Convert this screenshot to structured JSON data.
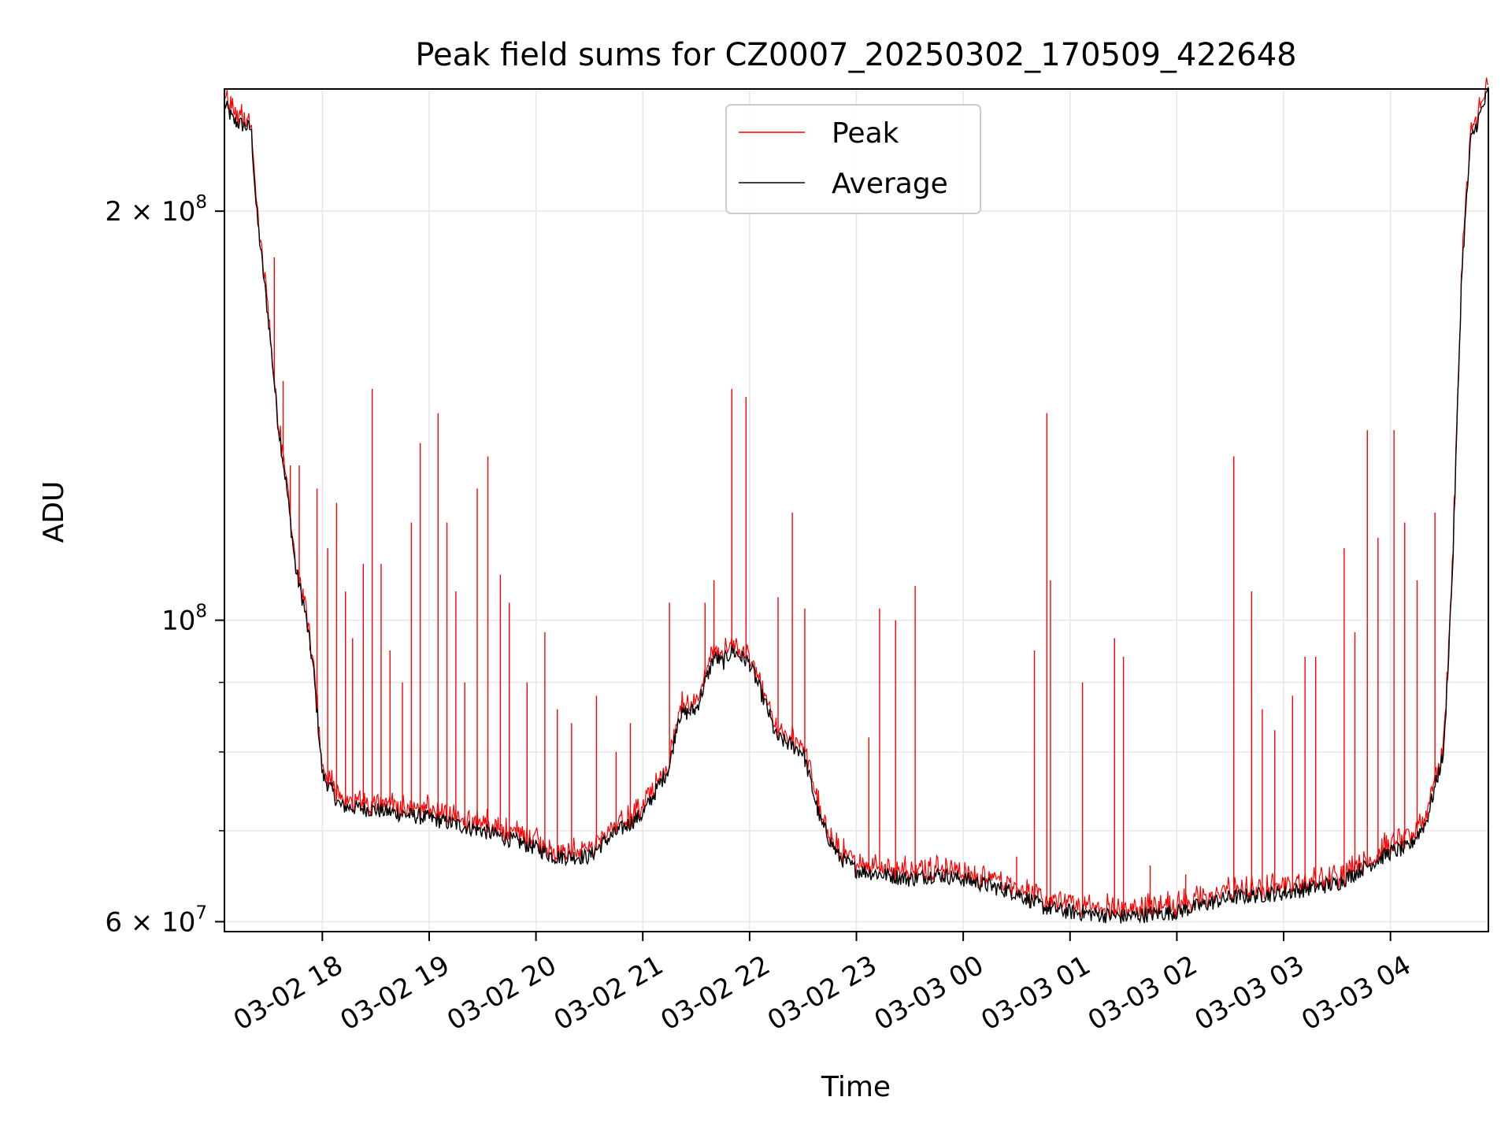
{
  "chart_data": {
    "type": "line",
    "title": "Peak field sums for CZ0007_20250302_170509_422648",
    "xlabel": "Time",
    "ylabel": "ADU",
    "y_scale": "log",
    "ylim": [
      59000000,
      246000000
    ],
    "xlim": [
      "2025-03-02 17:05",
      "2025-03-03 04:55"
    ],
    "grid": true,
    "legend": {
      "position": "top-center",
      "entries": [
        "Peak",
        "Average"
      ]
    },
    "x_ticks": [
      {
        "value": "2025-03-02 18:00",
        "label": "03-02 18"
      },
      {
        "value": "2025-03-02 19:00",
        "label": "03-02 19"
      },
      {
        "value": "2025-03-02 20:00",
        "label": "03-02 20"
      },
      {
        "value": "2025-03-02 21:00",
        "label": "03-02 21"
      },
      {
        "value": "2025-03-02 22:00",
        "label": "03-02 22"
      },
      {
        "value": "2025-03-02 23:00",
        "label": "03-02 23"
      },
      {
        "value": "2025-03-03 00:00",
        "label": "03-03 00"
      },
      {
        "value": "2025-03-03 01:00",
        "label": "03-03 01"
      },
      {
        "value": "2025-03-03 02:00",
        "label": "03-03 02"
      },
      {
        "value": "2025-03-03 03:00",
        "label": "03-03 03"
      },
      {
        "value": "2025-03-03 04:00",
        "label": "03-03 04"
      }
    ],
    "y_ticks": [
      {
        "value": 60000000,
        "base": "6 × 10",
        "exp": "7"
      },
      {
        "value": 100000000,
        "base": "10",
        "exp": "8"
      },
      {
        "value": 200000000,
        "base": "2 × 10",
        "exp": "8"
      }
    ],
    "y_minor_ticks": [
      70000000,
      80000000,
      90000000
    ],
    "series": [
      {
        "name": "Average",
        "color": "#000000",
        "x": [
          "2025-03-02 17:05",
          "2025-03-02 17:10",
          "2025-03-02 17:20",
          "2025-03-02 17:23",
          "2025-03-02 17:30",
          "2025-03-02 17:35",
          "2025-03-02 17:40",
          "2025-03-02 17:45",
          "2025-03-02 17:50",
          "2025-03-02 17:55",
          "2025-03-02 18:00",
          "2025-03-02 18:10",
          "2025-03-02 18:30",
          "2025-03-02 19:00",
          "2025-03-02 19:30",
          "2025-03-02 20:00",
          "2025-03-02 20:10",
          "2025-03-02 20:30",
          "2025-03-02 20:40",
          "2025-03-02 21:00",
          "2025-03-02 21:15",
          "2025-03-02 21:20",
          "2025-03-02 21:30",
          "2025-03-02 21:40",
          "2025-03-02 21:45",
          "2025-03-02 21:50",
          "2025-03-02 21:55",
          "2025-03-02 22:00",
          "2025-03-02 22:10",
          "2025-03-02 22:15",
          "2025-03-02 22:30",
          "2025-03-02 22:40",
          "2025-03-02 22:50",
          "2025-03-02 23:00",
          "2025-03-02 23:30",
          "2025-03-02 23:45",
          "2025-03-03 00:00",
          "2025-03-03 00:30",
          "2025-03-03 00:45",
          "2025-03-03 01:00",
          "2025-03-03 01:30",
          "2025-03-03 02:00",
          "2025-03-03 02:30",
          "2025-03-03 03:00",
          "2025-03-03 03:30",
          "2025-03-03 04:00",
          "2025-03-03 04:10",
          "2025-03-03 04:20",
          "2025-03-03 04:30",
          "2025-03-03 04:35",
          "2025-03-03 04:40",
          "2025-03-03 04:45",
          "2025-03-03 04:55"
        ],
        "y": [
          240000000,
          233000000,
          230000000,
          200000000,
          165000000,
          140000000,
          125000000,
          109000000,
          102000000,
          92000000,
          77000000,
          73000000,
          72500000,
          71500000,
          70000000,
          68000000,
          67000000,
          67000000,
          69000000,
          72000000,
          78000000,
          85000000,
          86000000,
          94000000,
          93000000,
          95000000,
          94000000,
          93000000,
          86000000,
          82000000,
          80000000,
          71000000,
          67000000,
          65500000,
          64500000,
          65000000,
          64500000,
          63000000,
          61500000,
          61000000,
          60500000,
          61000000,
          62500000,
          63000000,
          64000000,
          67500000,
          68000000,
          71000000,
          80000000,
          110000000,
          180000000,
          225000000,
          245000000
        ]
      },
      {
        "name": "Peak",
        "color": "#ff0000",
        "spikes": [
          {
            "x": "2025-03-02 17:33",
            "y": 185000000
          },
          {
            "x": "2025-03-02 17:38",
            "y": 150000000
          },
          {
            "x": "2025-03-02 17:42",
            "y": 130000000
          },
          {
            "x": "2025-03-02 17:47",
            "y": 130000000
          },
          {
            "x": "2025-03-02 17:53",
            "y": 95000000
          },
          {
            "x": "2025-03-02 17:57",
            "y": 125000000
          },
          {
            "x": "2025-03-02 18:03",
            "y": 113000000
          },
          {
            "x": "2025-03-02 18:08",
            "y": 122000000
          },
          {
            "x": "2025-03-02 18:13",
            "y": 105000000
          },
          {
            "x": "2025-03-02 18:17",
            "y": 97000000
          },
          {
            "x": "2025-03-02 18:23",
            "y": 110000000
          },
          {
            "x": "2025-03-02 18:28",
            "y": 148000000
          },
          {
            "x": "2025-03-02 18:33",
            "y": 110000000
          },
          {
            "x": "2025-03-02 18:38",
            "y": 95000000
          },
          {
            "x": "2025-03-02 18:45",
            "y": 90000000
          },
          {
            "x": "2025-03-02 18:50",
            "y": 118000000
          },
          {
            "x": "2025-03-02 18:55",
            "y": 135000000
          },
          {
            "x": "2025-03-02 19:05",
            "y": 142000000
          },
          {
            "x": "2025-03-02 19:10",
            "y": 118000000
          },
          {
            "x": "2025-03-02 19:15",
            "y": 105000000
          },
          {
            "x": "2025-03-02 19:20",
            "y": 90000000
          },
          {
            "x": "2025-03-02 19:27",
            "y": 125000000
          },
          {
            "x": "2025-03-02 19:33",
            "y": 132000000
          },
          {
            "x": "2025-03-02 19:40",
            "y": 108000000
          },
          {
            "x": "2025-03-02 19:45",
            "y": 103000000
          },
          {
            "x": "2025-03-02 19:55",
            "y": 90000000
          },
          {
            "x": "2025-03-02 20:05",
            "y": 98000000
          },
          {
            "x": "2025-03-02 20:12",
            "y": 86000000
          },
          {
            "x": "2025-03-02 20:20",
            "y": 84000000
          },
          {
            "x": "2025-03-02 20:34",
            "y": 88000000
          },
          {
            "x": "2025-03-02 20:45",
            "y": 80000000
          },
          {
            "x": "2025-03-02 20:53",
            "y": 84000000
          },
          {
            "x": "2025-03-02 21:15",
            "y": 103000000
          },
          {
            "x": "2025-03-02 21:35",
            "y": 103000000
          },
          {
            "x": "2025-03-02 21:40",
            "y": 107000000
          },
          {
            "x": "2025-03-02 21:50",
            "y": 148000000
          },
          {
            "x": "2025-03-02 21:58",
            "y": 146000000
          },
          {
            "x": "2025-03-02 22:16",
            "y": 104000000
          },
          {
            "x": "2025-03-02 22:24",
            "y": 120000000
          },
          {
            "x": "2025-03-02 22:31",
            "y": 102000000
          },
          {
            "x": "2025-03-02 23:07",
            "y": 82000000
          },
          {
            "x": "2025-03-02 23:13",
            "y": 102000000
          },
          {
            "x": "2025-03-02 23:22",
            "y": 100000000
          },
          {
            "x": "2025-03-02 23:33",
            "y": 106000000
          },
          {
            "x": "2025-03-03 00:30",
            "y": 67000000
          },
          {
            "x": "2025-03-03 00:40",
            "y": 95000000
          },
          {
            "x": "2025-03-03 00:47",
            "y": 142000000
          },
          {
            "x": "2025-03-03 00:49",
            "y": 107000000
          },
          {
            "x": "2025-03-03 01:07",
            "y": 90000000
          },
          {
            "x": "2025-03-03 01:25",
            "y": 97000000
          },
          {
            "x": "2025-03-03 01:30",
            "y": 94000000
          },
          {
            "x": "2025-03-03 01:45",
            "y": 66000000
          },
          {
            "x": "2025-03-03 02:05",
            "y": 65000000
          },
          {
            "x": "2025-03-03 02:32",
            "y": 132000000
          },
          {
            "x": "2025-03-03 02:42",
            "y": 105000000
          },
          {
            "x": "2025-03-03 02:48",
            "y": 86000000
          },
          {
            "x": "2025-03-03 02:55",
            "y": 83000000
          },
          {
            "x": "2025-03-03 03:05",
            "y": 88000000
          },
          {
            "x": "2025-03-03 03:12",
            "y": 94000000
          },
          {
            "x": "2025-03-03 03:18",
            "y": 94000000
          },
          {
            "x": "2025-03-03 03:34",
            "y": 113000000
          },
          {
            "x": "2025-03-03 03:40",
            "y": 98000000
          },
          {
            "x": "2025-03-03 03:47",
            "y": 138000000
          },
          {
            "x": "2025-03-03 03:53",
            "y": 115000000
          },
          {
            "x": "2025-03-03 04:02",
            "y": 138000000
          },
          {
            "x": "2025-03-03 04:08",
            "y": 118000000
          },
          {
            "x": "2025-03-03 04:15",
            "y": 107000000
          },
          {
            "x": "2025-03-03 04:25",
            "y": 120000000
          }
        ]
      }
    ]
  }
}
